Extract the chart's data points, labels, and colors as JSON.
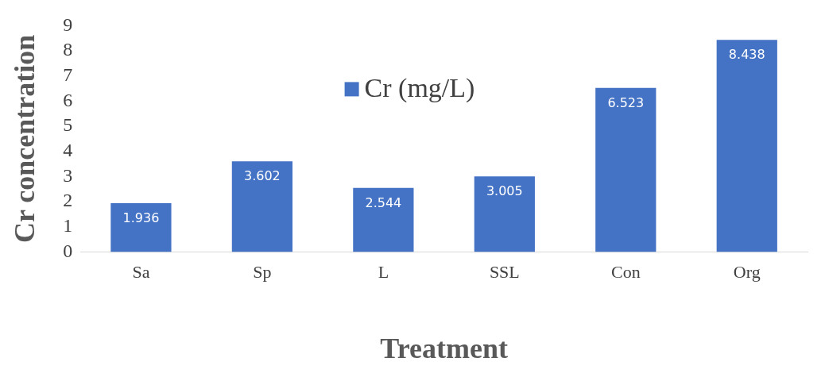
{
  "chart_data": {
    "type": "bar",
    "xlabel": "Treatment",
    "ylabel": "Cr concentration",
    "categories": [
      "Sa",
      "Sp",
      "L",
      "SSL",
      "Con",
      "Org"
    ],
    "series": [
      {
        "name": "Cr (mg/L)",
        "color": "#4472c4",
        "values": [
          1.936,
          3.602,
          2.544,
          3.005,
          6.523,
          8.438
        ]
      }
    ],
    "ylim": [
      0,
      9
    ],
    "yticks": [
      0,
      1,
      2,
      3,
      4,
      5,
      6,
      7,
      8,
      9
    ],
    "grid": false,
    "legend": "top",
    "data_labels": true
  }
}
